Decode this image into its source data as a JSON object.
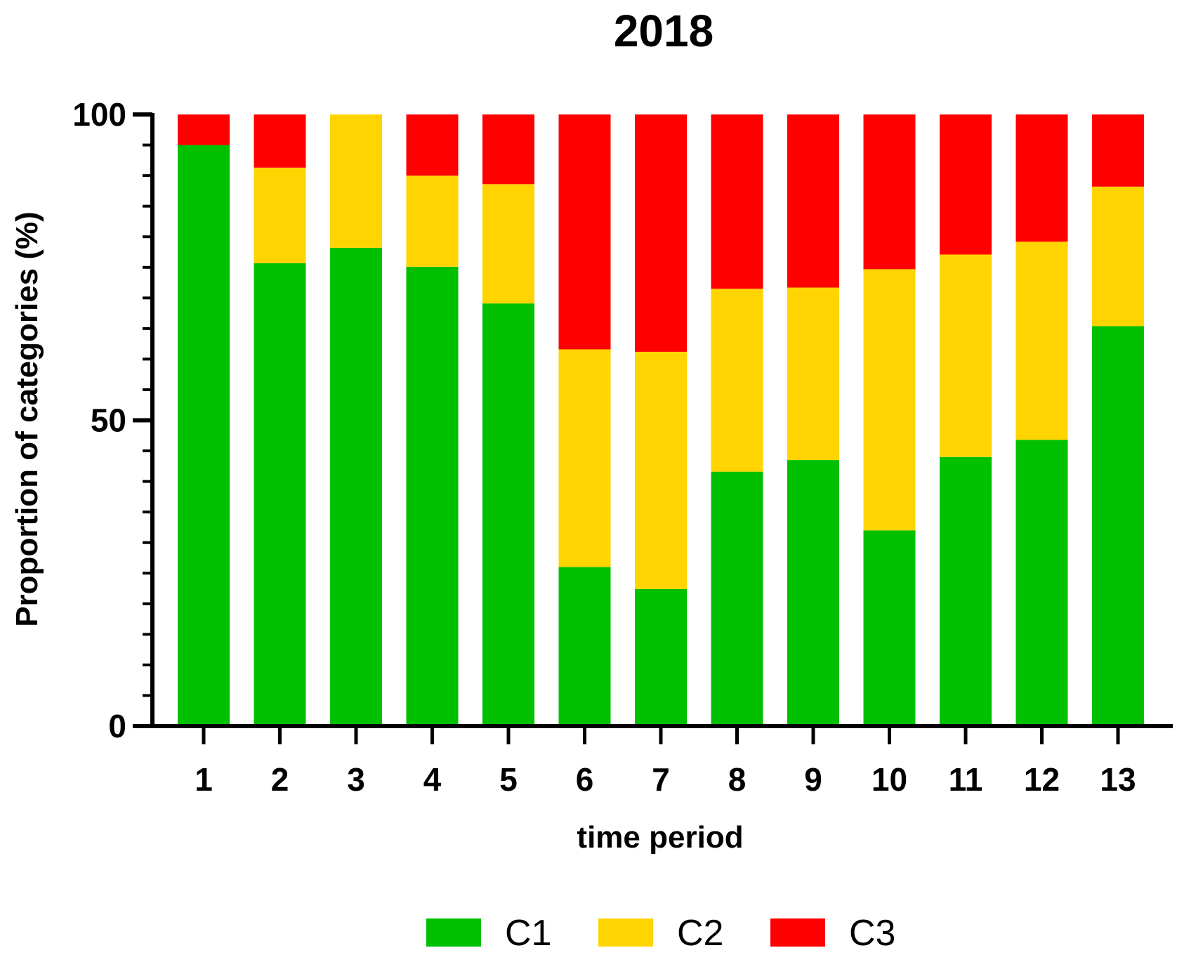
{
  "chart_data": {
    "type": "bar",
    "stacked": true,
    "title": "2018",
    "xlabel": "time period",
    "ylabel": "Proportion of categories (%)",
    "ylim": [
      0,
      100
    ],
    "yticks": [
      "0",
      "50",
      "100"
    ],
    "categories": [
      "1",
      "2",
      "3",
      "4",
      "5",
      "6",
      "7",
      "8",
      "9",
      "10",
      "11",
      "12",
      "13"
    ],
    "series": [
      {
        "name": "C1",
        "color": "#00c000",
        "values": [
          95,
          75.7,
          78.2,
          75.1,
          69.1,
          26,
          22.4,
          41.6,
          43.5,
          32,
          44,
          46.8,
          65.4
        ]
      },
      {
        "name": "C2",
        "color": "#ffd400",
        "values": [
          0,
          15.6,
          21.8,
          14.9,
          19.5,
          35.6,
          38.8,
          29.9,
          28.2,
          42.7,
          33.1,
          32.4,
          22.8
        ]
      },
      {
        "name": "C3",
        "color": "#ff0000",
        "values": [
          5,
          8.7,
          0,
          10,
          11.4,
          38.4,
          38.8,
          28.5,
          28.3,
          25.3,
          22.9,
          20.8,
          11.8
        ]
      }
    ],
    "legend_position": "bottom-center"
  }
}
